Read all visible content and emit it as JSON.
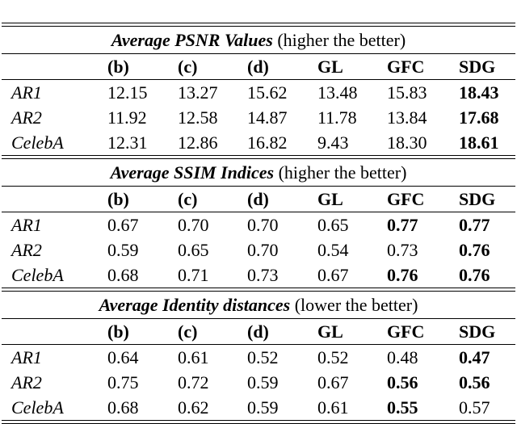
{
  "columns": [
    "(b)",
    "(c)",
    "(d)",
    "GL",
    "GFC",
    "SDG"
  ],
  "sections": [
    {
      "title_main": "Average PSNR Values",
      "title_note": "(higher the better)",
      "rows": [
        {
          "label": "AR1",
          "values": [
            "12.15",
            "13.27",
            "15.62",
            "13.48",
            "15.83",
            "18.43"
          ],
          "bold": [
            5
          ]
        },
        {
          "label": "AR2",
          "values": [
            "11.92",
            "12.58",
            "14.87",
            "11.78",
            "13.84",
            "17.68"
          ],
          "bold": [
            5
          ]
        },
        {
          "label": "CelebA",
          "values": [
            "12.31",
            "12.86",
            "16.82",
            "9.43",
            "18.30",
            "18.61"
          ],
          "bold": [
            5
          ]
        }
      ]
    },
    {
      "title_main": "Average SSIM Indices",
      "title_note": "(higher the better)",
      "rows": [
        {
          "label": "AR1",
          "values": [
            "0.67",
            "0.70",
            "0.70",
            "0.65",
            "0.77",
            "0.77"
          ],
          "bold": [
            4,
            5
          ]
        },
        {
          "label": "AR2",
          "values": [
            "0.59",
            "0.65",
            "0.70",
            "0.54",
            "0.73",
            "0.76"
          ],
          "bold": [
            5
          ]
        },
        {
          "label": "CelebA",
          "values": [
            "0.68",
            "0.71",
            "0.73",
            "0.67",
            "0.76",
            "0.76"
          ],
          "bold": [
            4,
            5
          ]
        }
      ]
    },
    {
      "title_main": "Average Identity distances",
      "title_note": "(lower the better)",
      "rows": [
        {
          "label": "AR1",
          "values": [
            "0.64",
            "0.61",
            "0.52",
            "0.52",
            "0.48",
            "0.47"
          ],
          "bold": [
            5
          ]
        },
        {
          "label": "AR2",
          "values": [
            "0.75",
            "0.72",
            "0.59",
            "0.67",
            "0.56",
            "0.56"
          ],
          "bold": [
            4,
            5
          ]
        },
        {
          "label": "CelebA",
          "values": [
            "0.68",
            "0.62",
            "0.59",
            "0.61",
            "0.55",
            "0.57"
          ],
          "bold": [
            4
          ]
        }
      ]
    }
  ]
}
